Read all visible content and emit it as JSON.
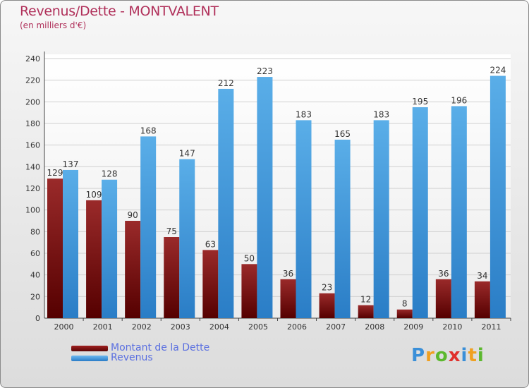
{
  "chart_data": {
    "type": "bar",
    "title": "Revenus/Dette - MONTVALENT",
    "subtitle": "(en milliers d'€)",
    "categories": [
      "2000",
      "2001",
      "2002",
      "2003",
      "2004",
      "2005",
      "2006",
      "2007",
      "2008",
      "2009",
      "2010",
      "2011"
    ],
    "series": [
      {
        "name": "Montant de la Dette",
        "color": "#7a1010",
        "values": [
          129,
          109,
          90,
          75,
          63,
          50,
          36,
          23,
          12,
          8,
          36,
          34
        ]
      },
      {
        "name": "Revenus",
        "color": "#3f98dc",
        "values": [
          137,
          128,
          168,
          147,
          212,
          223,
          183,
          165,
          183,
          195,
          196,
          224
        ]
      }
    ],
    "ylim": [
      0,
      240
    ],
    "yticks": [
      0,
      20,
      40,
      60,
      80,
      100,
      120,
      140,
      160,
      180,
      200,
      220,
      240
    ],
    "grid": true,
    "legend": "bottom-left"
  },
  "logo": {
    "letters": [
      "P",
      "r",
      "o",
      "x",
      "i",
      "t",
      "i"
    ],
    "colors": [
      "#3a8fd8",
      "#f0a020",
      "#5cb82e",
      "#e0302c",
      "#3a8fd8",
      "#f0a020",
      "#5cb82e"
    ]
  }
}
